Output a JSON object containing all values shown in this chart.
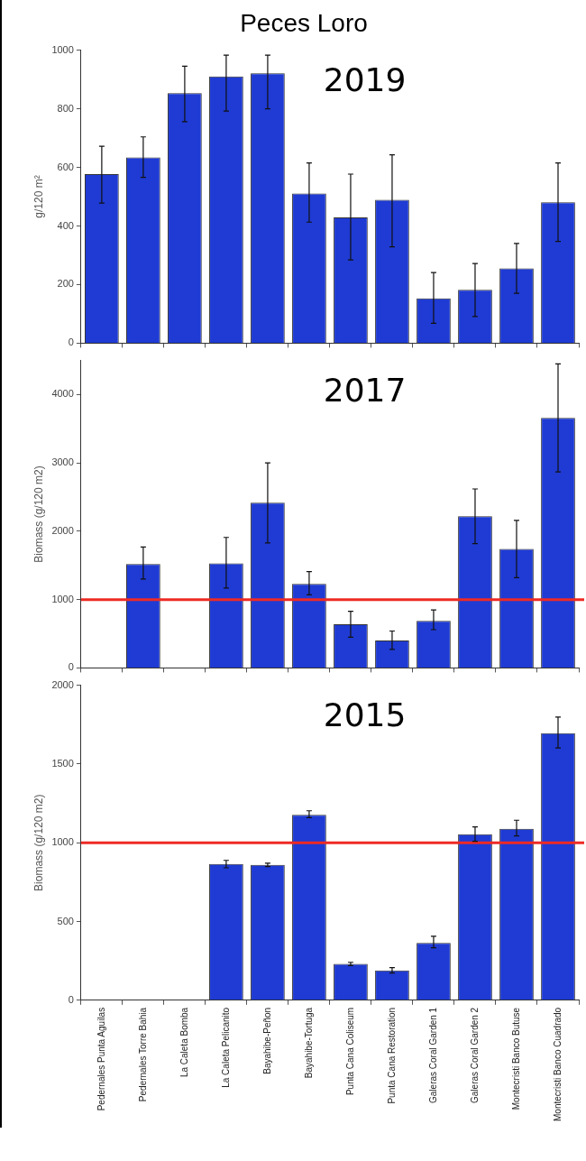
{
  "chart_data": [
    {
      "type": "bar",
      "title": "Peces Loro",
      "ylabel": "g/120 m²",
      "annotations": [
        "2019"
      ],
      "categories": [
        null,
        null,
        null,
        null,
        null,
        null,
        null,
        null,
        null,
        null,
        null,
        null
      ],
      "values": [
        577,
        634,
        853,
        910,
        921,
        511,
        429,
        489,
        153,
        182,
        255,
        481
      ],
      "errors": [
        [
          478,
          672
        ],
        [
          566,
          704
        ],
        [
          756,
          945
        ],
        [
          792,
          983
        ],
        [
          800,
          983
        ],
        [
          413,
          615
        ],
        [
          284,
          577
        ],
        [
          329,
          643
        ],
        [
          68,
          241
        ],
        [
          91,
          272
        ],
        [
          170,
          340
        ],
        [
          347,
          615
        ]
      ],
      "color": "#1f3bd4",
      "ylim": [
        0,
        1000
      ],
      "yticks": [
        0,
        200,
        400,
        600,
        800,
        1000
      ],
      "tick_labels": "y"
    },
    {
      "type": "bar",
      "ylabel": "Biomass (g/120 m2)",
      "annotations": [
        "2017"
      ],
      "categories": [
        null,
        null,
        null,
        null,
        null,
        null,
        null,
        null,
        null,
        null,
        null,
        null
      ],
      "values": [
        null,
        1520,
        null,
        1530,
        2420,
        1230,
        640,
        400,
        690,
        2220,
        1740,
        3660
      ],
      "errors": [
        null,
        [
          1300,
          1770
        ],
        null,
        [
          1170,
          1910
        ],
        [
          1830,
          3000
        ],
        [
          1070,
          1410
        ],
        [
          450,
          830
        ],
        [
          270,
          540
        ],
        [
          560,
          850
        ],
        [
          1820,
          2620
        ],
        [
          1320,
          2160
        ],
        [
          2870,
          4450
        ]
      ],
      "color": "#1f3bd4",
      "ylim": [
        0,
        4500
      ],
      "yticks": [
        0,
        1000,
        2000,
        3000,
        4000
      ],
      "tick_labels": "y",
      "ref_lines": [
        {
          "axis": "y",
          "value": 1000,
          "color": "#ee2a24"
        }
      ]
    },
    {
      "type": "bar",
      "ylabel": "Biomass (g/120 m2)",
      "annotations": [
        "2015"
      ],
      "categories": [
        "Pedernales Punta Aguilas",
        "Pedernales Torre Bahia",
        "La Caleta Bomba",
        "La Caleta Pelicanito",
        "Bayahibe-Peñon",
        "Bayahibe-Tortuga",
        "Punta Cana Coliseum",
        "Punta Cana Restoration",
        "Galeras Coral Garden 1",
        "Galeras Coral Garden 2",
        "Montecristi Banco Butuse",
        "Montecristi Banco Cuadrado"
      ],
      "values": [
        null,
        null,
        null,
        865,
        860,
        1177,
        231,
        189,
        364,
        1054,
        1088,
        1696
      ],
      "errors": [
        null,
        null,
        null,
        [
          841,
          888
        ],
        [
          849,
          870
        ],
        [
          1159,
          1203
        ],
        [
          220,
          241
        ],
        [
          173,
          207
        ],
        [
          333,
          406
        ],
        [
          1009,
          1101
        ],
        [
          1043,
          1143
        ],
        [
          1602,
          1798
        ]
      ],
      "color": "#1f3bd4",
      "ylim": [
        0,
        2000
      ],
      "yticks": [
        0,
        500,
        1000,
        1500,
        2000
      ],
      "ref_lines": [
        {
          "axis": "y",
          "value": 1000,
          "color": "#ee2a24"
        }
      ]
    }
  ]
}
